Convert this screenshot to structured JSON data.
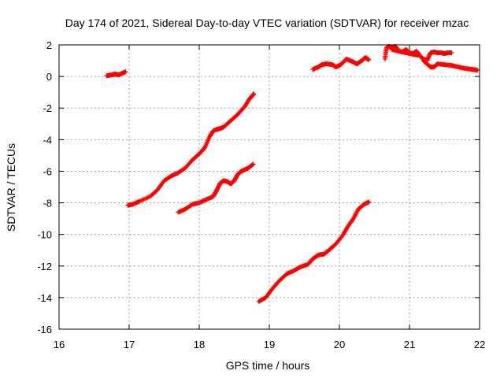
{
  "chart_data": {
    "type": "scatter",
    "title": "Day 174 of 2021, Sidereal Day-to-day VTEC variation (SDTVAR) for receiver mzac",
    "xlabel": "GPS time / hours",
    "ylabel": "SDTVAR / TECUs",
    "xlim": [
      16,
      22
    ],
    "ylim": [
      -16,
      2
    ],
    "xticks": [
      "16",
      "17",
      "18",
      "19",
      "20",
      "21",
      "22"
    ],
    "yticks": [
      "2",
      "0",
      "-2",
      "-4",
      "-6",
      "-8",
      "-10",
      "-12",
      "-14",
      "-16"
    ],
    "grid": true,
    "marker": "plus",
    "color": "#ff0000",
    "series": [
      {
        "name": "segment-1",
        "points": [
          [
            16.68,
            0.05
          ],
          [
            16.75,
            0.1
          ],
          [
            16.8,
            0.15
          ],
          [
            16.85,
            0.1
          ],
          [
            16.9,
            0.2
          ],
          [
            16.95,
            0.3
          ]
        ]
      },
      {
        "name": "segment-2",
        "points": [
          [
            16.98,
            -8.15
          ],
          [
            17.05,
            -8.1
          ],
          [
            17.15,
            -7.9
          ],
          [
            17.3,
            -7.6
          ],
          [
            17.4,
            -7.2
          ],
          [
            17.5,
            -6.6
          ],
          [
            17.6,
            -6.3
          ],
          [
            17.7,
            -6.1
          ],
          [
            17.8,
            -5.8
          ],
          [
            17.9,
            -5.3
          ],
          [
            18.0,
            -4.9
          ],
          [
            18.08,
            -4.5
          ],
          [
            18.15,
            -3.8
          ],
          [
            18.2,
            -3.45
          ],
          [
            18.25,
            -3.35
          ],
          [
            18.3,
            -3.3
          ],
          [
            18.35,
            -3.2
          ],
          [
            18.45,
            -2.8
          ],
          [
            18.55,
            -2.4
          ],
          [
            18.65,
            -1.9
          ],
          [
            18.72,
            -1.4
          ],
          [
            18.78,
            -1.1
          ]
        ]
      },
      {
        "name": "segment-3",
        "points": [
          [
            17.7,
            -8.6
          ],
          [
            17.8,
            -8.4
          ],
          [
            17.9,
            -8.1
          ],
          [
            18.0,
            -8.0
          ],
          [
            18.1,
            -7.8
          ],
          [
            18.2,
            -7.6
          ],
          [
            18.25,
            -7.2
          ],
          [
            18.3,
            -6.75
          ],
          [
            18.35,
            -6.6
          ],
          [
            18.4,
            -6.65
          ],
          [
            18.45,
            -6.8
          ],
          [
            18.5,
            -6.6
          ],
          [
            18.55,
            -6.2
          ],
          [
            18.6,
            -6.0
          ],
          [
            18.65,
            -5.9
          ],
          [
            18.7,
            -5.8
          ],
          [
            18.77,
            -5.55
          ]
        ]
      },
      {
        "name": "segment-4",
        "points": [
          [
            18.85,
            -14.25
          ],
          [
            18.95,
            -14.0
          ],
          [
            19.05,
            -13.4
          ],
          [
            19.15,
            -12.9
          ],
          [
            19.25,
            -12.5
          ],
          [
            19.35,
            -12.3
          ],
          [
            19.45,
            -12.05
          ],
          [
            19.55,
            -11.9
          ],
          [
            19.62,
            -11.55
          ],
          [
            19.7,
            -11.3
          ],
          [
            19.78,
            -11.25
          ],
          [
            19.85,
            -11.0
          ],
          [
            19.95,
            -10.6
          ],
          [
            20.05,
            -10.05
          ],
          [
            20.12,
            -9.5
          ],
          [
            20.2,
            -9.0
          ],
          [
            20.27,
            -8.4
          ],
          [
            20.35,
            -8.1
          ],
          [
            20.42,
            -7.95
          ]
        ]
      },
      {
        "name": "segment-5",
        "points": [
          [
            19.62,
            0.45
          ],
          [
            19.7,
            0.6
          ],
          [
            19.75,
            0.75
          ],
          [
            19.82,
            0.8
          ],
          [
            19.9,
            0.75
          ],
          [
            19.95,
            0.6
          ],
          [
            20.02,
            0.75
          ],
          [
            20.1,
            1.1
          ],
          [
            20.18,
            0.95
          ],
          [
            20.25,
            0.8
          ],
          [
            20.32,
            1.0
          ],
          [
            20.37,
            1.2
          ],
          [
            20.42,
            1.05
          ]
        ]
      },
      {
        "name": "segment-6",
        "points": [
          [
            20.65,
            1.1
          ],
          [
            20.67,
            1.8
          ],
          [
            20.7,
            1.9
          ],
          [
            20.75,
            1.85
          ],
          [
            20.8,
            1.9
          ],
          [
            20.85,
            1.6
          ],
          [
            20.9,
            1.55
          ],
          [
            20.95,
            1.7
          ],
          [
            21.0,
            1.5
          ],
          [
            21.05,
            1.45
          ],
          [
            21.1,
            1.6
          ],
          [
            21.15,
            1.3
          ],
          [
            21.2,
            1.1
          ],
          [
            21.25,
            1.0
          ],
          [
            21.3,
            1.5
          ],
          [
            21.35,
            1.55
          ],
          [
            21.4,
            1.5
          ],
          [
            21.45,
            1.5
          ],
          [
            21.5,
            1.45
          ],
          [
            21.55,
            1.5
          ],
          [
            21.6,
            1.5
          ]
        ]
      },
      {
        "name": "segment-7",
        "points": [
          [
            21.2,
            1.0
          ],
          [
            21.25,
            0.8
          ],
          [
            21.3,
            0.6
          ],
          [
            21.35,
            0.6
          ],
          [
            21.4,
            0.8
          ],
          [
            21.5,
            0.75
          ],
          [
            21.6,
            0.7
          ],
          [
            21.7,
            0.6
          ],
          [
            21.8,
            0.5
          ],
          [
            21.9,
            0.45
          ],
          [
            21.97,
            0.4
          ]
        ]
      },
      {
        "name": "segment-8",
        "points": [
          [
            20.75,
            1.7
          ],
          [
            20.85,
            1.6
          ],
          [
            20.95,
            1.5
          ],
          [
            21.05,
            1.4
          ],
          [
            21.12,
            1.35
          ]
        ]
      }
    ]
  }
}
